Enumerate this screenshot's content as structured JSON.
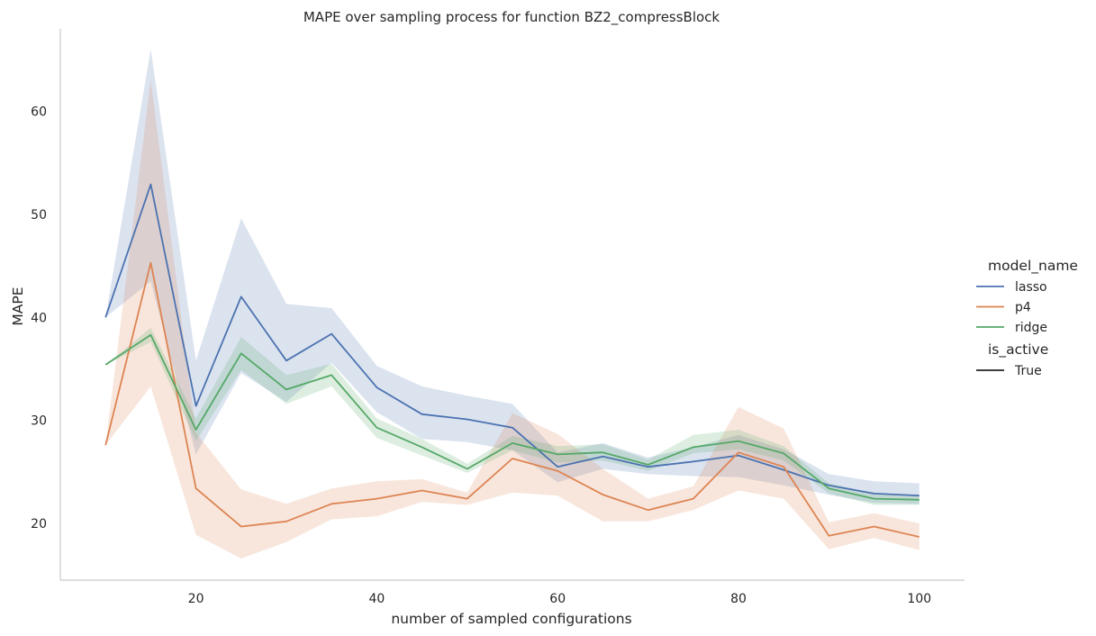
{
  "chart_data": {
    "type": "line",
    "title": "MAPE over sampling process for function BZ2_compressBlock",
    "xlabel": "number of sampled configurations",
    "ylabel": "MAPE",
    "x": [
      10,
      15,
      20,
      25,
      30,
      35,
      40,
      45,
      50,
      55,
      60,
      65,
      70,
      75,
      80,
      85,
      90,
      95,
      100
    ],
    "xlim": [
      5,
      105
    ],
    "ylim": [
      14.5,
      68
    ],
    "xticks": [
      20,
      40,
      60,
      80,
      100
    ],
    "yticks": [
      20,
      30,
      40,
      50,
      60
    ],
    "grid": false,
    "legend_position": "right",
    "legend": {
      "hue_title": "model_name",
      "style_title": "is_active",
      "style_entries": [
        {
          "label": "True",
          "color": "#222222"
        }
      ]
    },
    "series": [
      {
        "name": "lasso",
        "color": "#4c72b0",
        "values": [
          40.0,
          52.9,
          31.4,
          42.0,
          35.8,
          38.4,
          33.2,
          30.6,
          30.1,
          29.3,
          25.5,
          26.5,
          25.5,
          26.0,
          26.6,
          25.2,
          23.7,
          22.9,
          22.7
        ],
        "ci_low": [
          40.0,
          43.5,
          26.7,
          34.6,
          31.8,
          35.6,
          30.8,
          28.2,
          27.9,
          27.1,
          24.0,
          25.3,
          24.8,
          24.6,
          24.5,
          23.7,
          22.8,
          22.0,
          21.9
        ],
        "ci_high": [
          40.0,
          66.0,
          35.8,
          49.6,
          41.3,
          40.9,
          35.3,
          33.3,
          32.4,
          31.6,
          26.9,
          27.8,
          26.4,
          27.4,
          28.6,
          27.2,
          24.8,
          24.1,
          23.9
        ]
      },
      {
        "name": "p4",
        "color": "#dd8452",
        "values": [
          27.6,
          45.3,
          23.4,
          19.7,
          20.2,
          21.9,
          22.4,
          23.2,
          22.4,
          26.3,
          25.1,
          22.8,
          21.3,
          22.4,
          26.9,
          25.5,
          18.8,
          19.7,
          18.7
        ],
        "ci_low": [
          27.6,
          33.3,
          18.9,
          16.6,
          18.2,
          20.4,
          20.7,
          22.1,
          21.8,
          23.0,
          22.7,
          20.2,
          20.2,
          21.3,
          23.2,
          22.4,
          17.5,
          18.6,
          17.4
        ],
        "ci_high": [
          27.6,
          63.0,
          28.8,
          23.3,
          21.9,
          23.4,
          24.1,
          24.3,
          23.0,
          30.7,
          28.7,
          25.3,
          22.4,
          23.6,
          31.3,
          29.2,
          20.1,
          21.0,
          20.0
        ]
      },
      {
        "name": "ridge",
        "color": "#55a868",
        "values": [
          35.4,
          38.3,
          29.1,
          36.5,
          33.0,
          34.4,
          29.3,
          27.4,
          25.3,
          27.8,
          26.7,
          26.9,
          25.7,
          27.4,
          28.0,
          26.8,
          23.4,
          22.4,
          22.3
        ],
        "ci_low": [
          35.4,
          37.6,
          28.0,
          34.9,
          31.6,
          33.3,
          28.3,
          26.6,
          24.9,
          27.1,
          25.9,
          26.1,
          25.1,
          26.8,
          27.2,
          26.1,
          22.9,
          21.8,
          21.8
        ],
        "ci_high": [
          35.4,
          39.0,
          30.2,
          38.1,
          34.4,
          35.5,
          30.2,
          28.2,
          25.8,
          28.5,
          27.5,
          27.7,
          26.2,
          28.6,
          29.1,
          27.5,
          23.9,
          22.9,
          22.8
        ]
      }
    ]
  }
}
